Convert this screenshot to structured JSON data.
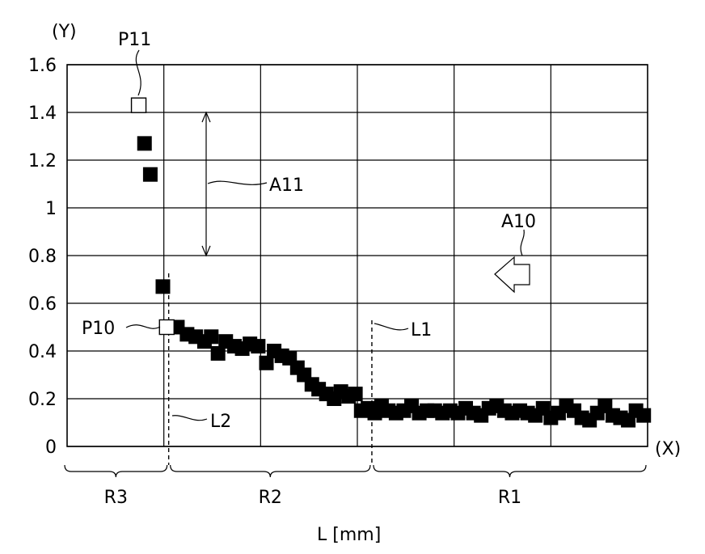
{
  "chart_data": {
    "type": "scatter",
    "y_axis_label": "(Y)",
    "x_axis_label": "(X)",
    "xlabel": "L [mm]",
    "ylim": [
      0,
      1.6
    ],
    "y_ticks": [
      "0",
      "0.2",
      "0.4",
      "0.6",
      "0.8",
      "1",
      "1.2",
      "1.4",
      "1.6"
    ],
    "y_tick_values": [
      0,
      0.2,
      0.4,
      0.6,
      0.8,
      1.0,
      1.2,
      1.4,
      1.6
    ],
    "xlim": [
      0,
      12
    ],
    "grid": true,
    "series": [
      {
        "marker": "filled-square",
        "x": [
          1.6,
          1.72,
          1.98,
          2.28,
          2.48,
          2.66,
          2.84,
          2.98,
          3.12,
          3.28,
          3.46,
          3.62,
          3.78,
          3.95,
          4.12,
          4.28,
          4.44,
          4.6,
          4.76,
          4.9,
          5.06,
          5.2,
          5.36,
          5.52,
          5.66,
          5.82,
          5.96,
          6.08,
          6.22,
          6.36,
          6.5,
          6.64,
          6.8,
          6.96,
          7.12,
          7.28,
          7.44,
          7.6,
          7.76,
          7.92,
          8.08,
          8.24,
          8.4,
          8.56,
          8.72,
          8.88,
          9.04,
          9.2,
          9.36,
          9.52,
          9.68,
          9.84,
          10.0,
          10.16,
          10.32,
          10.48,
          10.64,
          10.8,
          10.96,
          11.12,
          11.28,
          11.44,
          11.6,
          11.76,
          11.92
        ],
        "y": [
          1.27,
          1.14,
          0.67,
          0.5,
          0.47,
          0.46,
          0.44,
          0.46,
          0.39,
          0.44,
          0.42,
          0.41,
          0.43,
          0.42,
          0.35,
          0.4,
          0.38,
          0.37,
          0.33,
          0.3,
          0.26,
          0.24,
          0.22,
          0.2,
          0.23,
          0.21,
          0.22,
          0.15,
          0.16,
          0.14,
          0.17,
          0.15,
          0.14,
          0.15,
          0.17,
          0.14,
          0.15,
          0.15,
          0.14,
          0.15,
          0.14,
          0.16,
          0.14,
          0.13,
          0.16,
          0.17,
          0.15,
          0.14,
          0.15,
          0.14,
          0.13,
          0.16,
          0.12,
          0.14,
          0.17,
          0.15,
          0.12,
          0.11,
          0.14,
          0.17,
          0.13,
          0.12,
          0.11,
          0.15,
          0.13
        ]
      },
      {
        "marker": "open-square",
        "x": [
          1.48,
          2.06
        ],
        "y": [
          1.43,
          0.5
        ]
      }
    ],
    "annotations": {
      "p11": "P11",
      "p10": "P10",
      "a11": "A11",
      "a10": "A10",
      "l1": "L1",
      "l2": "L2"
    },
    "regions": [
      {
        "label": "R3",
        "x_start": 0,
        "x_end": 2.1
      },
      {
        "label": "R2",
        "x_start": 2.1,
        "x_end": 6.3
      },
      {
        "label": "R1",
        "x_start": 6.3,
        "x_end": 12
      }
    ],
    "line_l1_x": 6.3,
    "line_l2_x": 2.1,
    "arrow_a11_range": [
      0.8,
      1.4
    ]
  }
}
